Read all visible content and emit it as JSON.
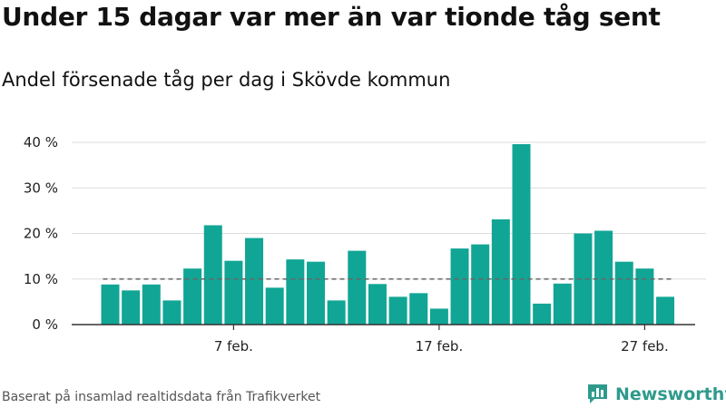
{
  "header": {
    "title": "Under 15 dagar var mer än var tionde tåg sent",
    "subtitle": "Andel försenade tåg per dag i Skövde kommun"
  },
  "footer": {
    "source": "Baserat på insamlad realtidsdata från Trafikverket",
    "brand": "Newsworthy"
  },
  "colors": {
    "bar": "#11a595",
    "reference_line": "#666666",
    "grid": "#dddddd",
    "axis": "#333333",
    "brand": "#2e9a8c"
  },
  "chart_data": {
    "type": "bar",
    "x": [
      1,
      2,
      3,
      4,
      5,
      6,
      7,
      8,
      9,
      10,
      11,
      12,
      13,
      14,
      15,
      16,
      17,
      18,
      19,
      20,
      21,
      22,
      23,
      24,
      25,
      26,
      27,
      28
    ],
    "values": [
      8.8,
      7.5,
      8.8,
      5.3,
      12.3,
      21.8,
      14.0,
      19.0,
      8.1,
      14.3,
      13.8,
      5.3,
      16.2,
      8.9,
      6.1,
      6.9,
      3.5,
      16.7,
      17.6,
      23.1,
      39.6,
      4.6,
      9.0,
      20.0,
      20.6,
      13.8,
      12.3,
      6.1
    ],
    "x_ticks": [
      {
        "x": 7,
        "label": "7 feb."
      },
      {
        "x": 17,
        "label": "17 feb."
      },
      {
        "x": 27,
        "label": "27 feb."
      }
    ],
    "y_ticks": [
      {
        "value": 0,
        "label": "0 %"
      },
      {
        "value": 10,
        "label": "10 %"
      },
      {
        "value": 20,
        "label": "20 %"
      },
      {
        "value": 30,
        "label": "30 %"
      },
      {
        "value": 40,
        "label": "40 %"
      }
    ],
    "ylim": [
      0,
      40
    ],
    "reference_line": 10,
    "grid": true,
    "legend": false
  }
}
